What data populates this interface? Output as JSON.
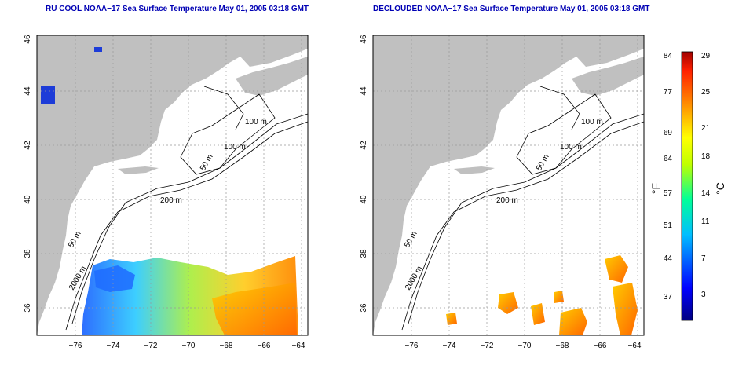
{
  "left_panel": {
    "title": "RU COOL NOAA−17 Sea Surface Temperature May 01, 2005 03:18 GMT",
    "x_ticks": [
      "−76",
      "−74",
      "−72",
      "−70",
      "−68",
      "−66",
      "−64"
    ],
    "y_ticks": [
      "46",
      "44",
      "42",
      "40",
      "38",
      "36"
    ],
    "contour_labels": [
      "100 m",
      "100 m",
      "50 m",
      "200 m",
      "50 m",
      "2000 m"
    ]
  },
  "right_panel": {
    "title": "DECLOUDED NOAA−17 Sea Surface Temperature May 01, 2005 03:18 GMT",
    "x_ticks": [
      "−76",
      "−74",
      "−72",
      "−70",
      "−68",
      "−66",
      "−64"
    ],
    "y_ticks": [
      "46",
      "44",
      "42",
      "40",
      "38",
      "36"
    ],
    "contour_labels": [
      "100 m",
      "100 m",
      "50 m",
      "200 m",
      "50 m",
      "2000 m"
    ]
  },
  "colorbar": {
    "f_label": "°F",
    "c_label": "°C",
    "f_ticks": [
      "84",
      "77",
      "69",
      "64",
      "57",
      "51",
      "44",
      "37"
    ],
    "c_ticks": [
      "29",
      "25",
      "21",
      "18",
      "14",
      "11",
      "7",
      "3"
    ]
  },
  "colors": {
    "land": "#c0c0c0",
    "title": "#0000b4",
    "grid": "#999999"
  }
}
